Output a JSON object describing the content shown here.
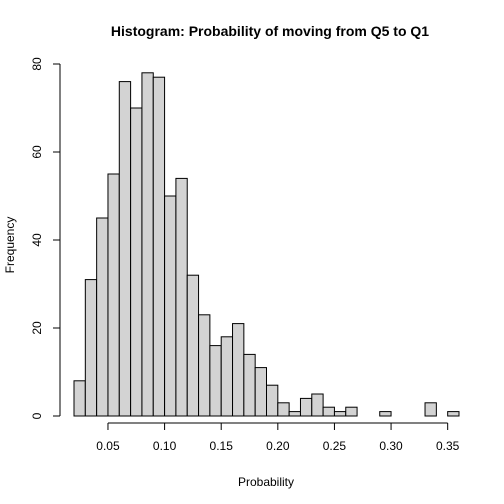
{
  "chart_data": {
    "type": "bar",
    "title": "Histogram: Probability of moving from Q5 to Q1",
    "xlabel": "Probability",
    "ylabel": "Frequency",
    "bin_start": 0.02,
    "bin_width": 0.01,
    "values": [
      8,
      31,
      45,
      55,
      76,
      70,
      78,
      77,
      50,
      54,
      32,
      23,
      16,
      18,
      21,
      14,
      11,
      7,
      3,
      1,
      4,
      5,
      2,
      1,
      2,
      0,
      0,
      1,
      0,
      0,
      0,
      3,
      0,
      1
    ],
    "xlim": [
      0.02,
      0.36
    ],
    "ylim": [
      0,
      80
    ],
    "x_ticks": [
      "0.05",
      "0.10",
      "0.15",
      "0.20",
      "0.25",
      "0.30",
      "0.35"
    ],
    "x_tick_values": [
      0.05,
      0.1,
      0.15,
      0.2,
      0.25,
      0.3,
      0.35
    ],
    "y_ticks": [
      "0",
      "20",
      "40",
      "60",
      "80"
    ],
    "y_tick_values": [
      0,
      20,
      40,
      60,
      80
    ],
    "colors": {
      "bar_fill": "#d3d3d3",
      "bar_stroke": "#000000"
    }
  }
}
